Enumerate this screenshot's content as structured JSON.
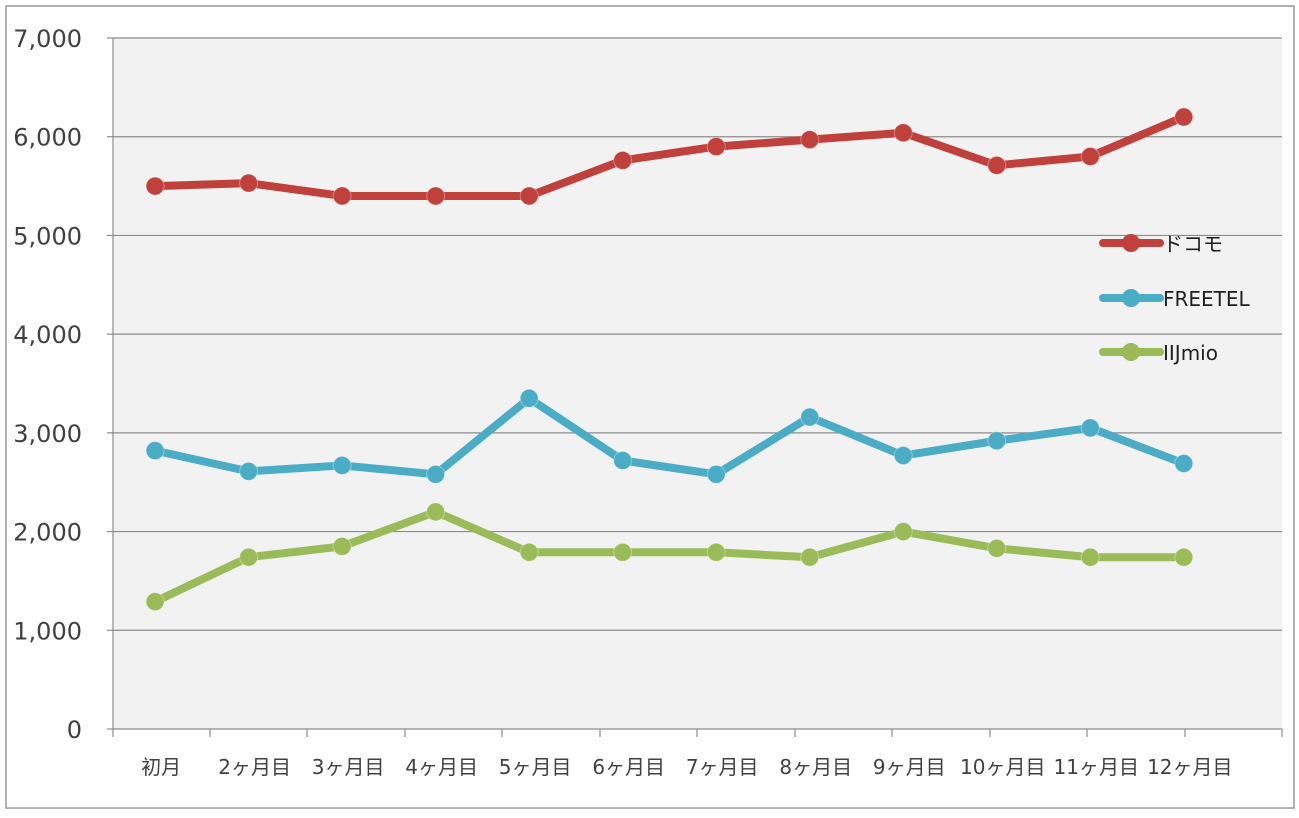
{
  "chart_data": {
    "type": "line",
    "categories": [
      "初月",
      "2ヶ月目",
      "3ヶ月目",
      "4ヶ月目",
      "5ヶ月目",
      "6ヶ月目",
      "7ヶ月目",
      "8ヶ月目",
      "9ヶ月目",
      "10ヶ月目",
      "11ヶ月目",
      "12ヶ月目"
    ],
    "ylim": [
      0,
      7000
    ],
    "yticks": [
      0,
      1000,
      2000,
      3000,
      4000,
      5000,
      6000,
      7000
    ],
    "ytick_labels": [
      "0",
      "1,000",
      "2,000",
      "3,000",
      "4,000",
      "5,000",
      "6,000",
      "7,000"
    ],
    "grid": true,
    "legend_position": "right",
    "series": [
      {
        "name": "ドコモ",
        "color": "#c0403c",
        "values": [
          5500,
          5530,
          5400,
          5400,
          5400,
          5760,
          5900,
          5970,
          6040,
          5710,
          5800,
          6200
        ]
      },
      {
        "name": "FREETEL",
        "color": "#4bacc6",
        "values": [
          2820,
          2610,
          2670,
          2580,
          3350,
          2720,
          2580,
          3160,
          2770,
          2920,
          3050,
          2690
        ]
      },
      {
        "name": "IIJmio",
        "color": "#9bbb59",
        "values": [
          1290,
          1740,
          1850,
          2200,
          1790,
          1790,
          1790,
          1740,
          2000,
          1830,
          1740,
          1740
        ]
      }
    ]
  }
}
